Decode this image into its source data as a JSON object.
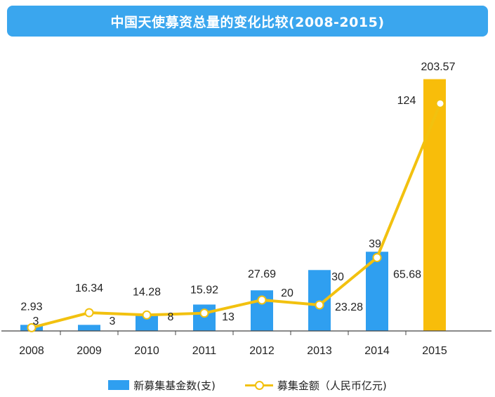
{
  "title": "中国天使募资总量的变化比较(2008-2015)",
  "colors": {
    "title_bg": "#3aa6ee",
    "bar_blue": "#2f9ff0",
    "bar_highlight": "#f8bd0a",
    "line": "#f2c10f",
    "axis": "#444444"
  },
  "legend": {
    "bar_label": "新募集基金数(支)",
    "line_label": "募集金额（人民币亿元)"
  },
  "chart_data": {
    "type": "bar",
    "title": "中国天使募资总量的变化比较(2008-2015)",
    "categories": [
      "2008",
      "2009",
      "2010",
      "2011",
      "2012",
      "2013",
      "2014",
      "2015"
    ],
    "series": [
      {
        "name": "新募集基金数(支)",
        "type": "bar",
        "values": [
          3,
          3,
          8,
          13,
          20,
          30,
          39,
          124
        ],
        "labels": [
          "3",
          "3",
          "8",
          "13",
          "20",
          "30",
          "39",
          "124"
        ]
      },
      {
        "name": "募集金额（人民币亿元)",
        "type": "line",
        "values": [
          2.93,
          16.34,
          14.28,
          15.92,
          27.69,
          23.28,
          65.68,
          203.57
        ],
        "labels": [
          "2.93",
          "16.34",
          "14.28",
          "15.92",
          "27.69",
          "23.28",
          "65.68",
          "203.57"
        ]
      }
    ],
    "highlight_category": "2015",
    "grid": false,
    "legend_position": "bottom"
  }
}
